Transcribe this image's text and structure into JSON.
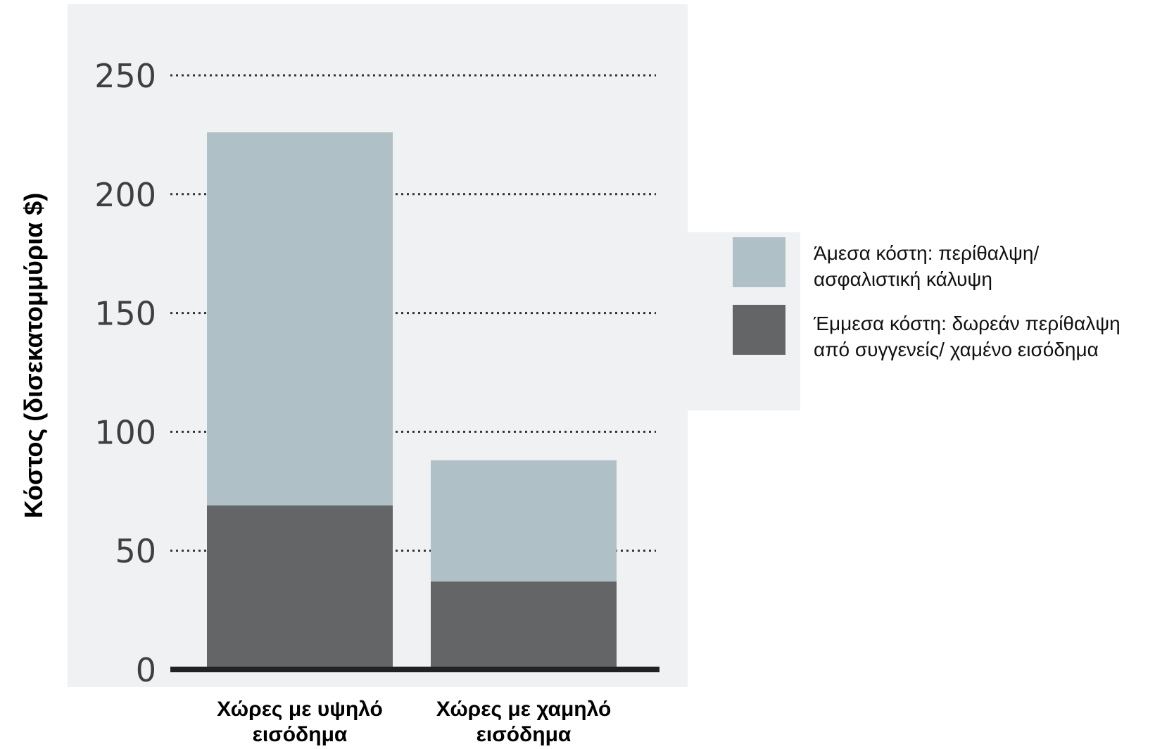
{
  "chart_data": {
    "type": "bar",
    "stacked": true,
    "categories": [
      [
        "Χώρες με υψηλό",
        "εισόδημα"
      ],
      [
        "Χώρες με χαμηλό",
        "εισόδημα"
      ]
    ],
    "series": [
      {
        "name": [
          "Έμμεσα κόστη: δωρεάν περίθαλψη",
          "από συγγενείς/ χαμένο εισόδημα"
        ],
        "values": [
          69,
          37
        ],
        "color": "#646567"
      },
      {
        "name": [
          "Άμεσα κόστη: περίθαλψη/",
          "ασφαλιστική κάλυψη"
        ],
        "values": [
          157,
          51
        ],
        "color": "#b0c0c7"
      }
    ],
    "legend_order": [
      1,
      0
    ],
    "ylabel": "Κόστος (δισεκατομμύρια $)",
    "ylim": [
      0,
      250
    ],
    "yticks": [
      0,
      50,
      100,
      150,
      200,
      250
    ],
    "grid": "dotted-horizontal",
    "legend_position": "right",
    "colors": {
      "plot_background": "#f0f1f2",
      "axis_line": "#222222",
      "gridline": "#333333"
    }
  }
}
